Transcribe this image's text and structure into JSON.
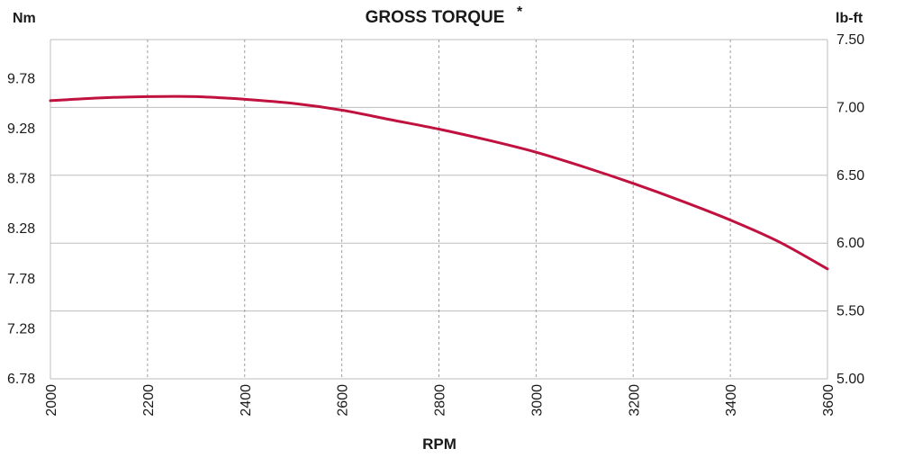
{
  "chart_data": {
    "type": "line",
    "title": "GROSS TORQUE",
    "title_superscript": "*",
    "xlabel": "RPM",
    "y_left_unit": "Nm",
    "y_right_unit": "lb-ft",
    "x_ticks": [
      "2000",
      "2200",
      "2400",
      "2600",
      "2800",
      "3000",
      "3200",
      "3400",
      "3600"
    ],
    "y_left_ticks": [
      "6.78",
      "7.28",
      "7.78",
      "8.28",
      "8.78",
      "9.28",
      "9.78"
    ],
    "y_right_ticks": [
      "5.00",
      "5.50",
      "6.00",
      "6.50",
      "7.00",
      "7.50"
    ],
    "xlim": [
      2000,
      3600
    ],
    "y_right_lim": [
      5.0,
      7.5
    ],
    "y_left_lim": [
      6.78,
      10.17
    ],
    "grid": {
      "x": "dashed",
      "y_right": "solid"
    },
    "series": [
      {
        "values_unit": "lb-ft",
        "x": [
          2000,
          2100,
          2200,
          2300,
          2400,
          2500,
          2600,
          2700,
          2800,
          2900,
          3000,
          3100,
          3200,
          3300,
          3400,
          3500,
          3600
        ],
        "y": [
          7.05,
          7.07,
          7.08,
          7.08,
          7.06,
          7.03,
          6.98,
          6.91,
          6.84,
          6.76,
          6.67,
          6.56,
          6.44,
          6.31,
          6.17,
          6.01,
          5.81
        ]
      }
    ],
    "colors": {
      "line": "#c0113f",
      "grid": "#bdbdbd",
      "text": "#1a1a1a"
    }
  }
}
